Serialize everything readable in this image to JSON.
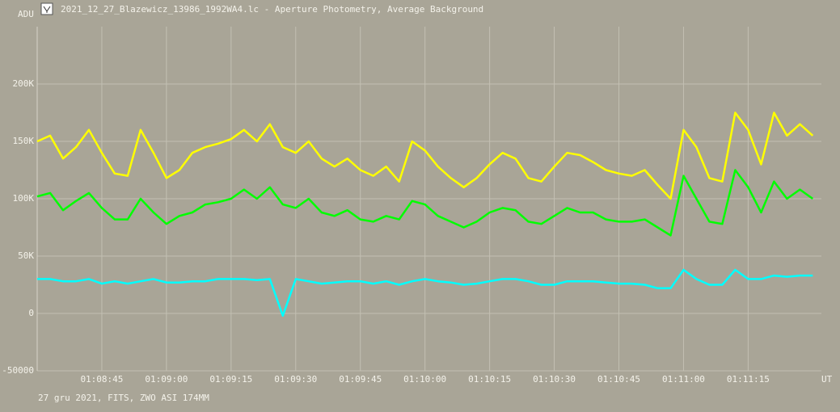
{
  "chart_data": {
    "type": "line",
    "title": "2021_12_27_Blazewicz_13986_1992WA4.lc - Aperture Photometry, Average Background",
    "y_label": "ADU",
    "x_label": "UT",
    "footer": "27 gru 2021, FITS, ZWO ASI 174MM",
    "grid": true,
    "xlim": [
      4110,
      4292
    ],
    "xticks": [
      {
        "value": 4125,
        "label": "01:08:45"
      },
      {
        "value": 4140,
        "label": "01:09:00"
      },
      {
        "value": 4155,
        "label": "01:09:15"
      },
      {
        "value": 4170,
        "label": "01:09:30"
      },
      {
        "value": 4185,
        "label": "01:09:45"
      },
      {
        "value": 4200,
        "label": "01:10:00"
      },
      {
        "value": 4215,
        "label": "01:10:15"
      },
      {
        "value": 4230,
        "label": "01:10:30"
      },
      {
        "value": 4245,
        "label": "01:10:45"
      },
      {
        "value": 4260,
        "label": "01:11:00"
      },
      {
        "value": 4275,
        "label": "01:11:15"
      }
    ],
    "ylim": [
      -50000,
      250000
    ],
    "yticks": [
      -50000,
      0,
      {
        "value": 50000,
        "label": "50K"
      },
      {
        "value": 100000,
        "label": "100K"
      },
      {
        "value": 150000,
        "label": "150K"
      },
      {
        "value": 200000,
        "label": "200K"
      }
    ],
    "x": [
      4110,
      4113,
      4116,
      4119,
      4122,
      4125,
      4128,
      4131,
      4134,
      4137,
      4140,
      4143,
      4146,
      4149,
      4152,
      4155,
      4158,
      4161,
      4164,
      4167,
      4170,
      4173,
      4176,
      4179,
      4182,
      4185,
      4188,
      4191,
      4194,
      4197,
      4200,
      4203,
      4206,
      4209,
      4212,
      4215,
      4218,
      4221,
      4224,
      4227,
      4230,
      4233,
      4236,
      4239,
      4242,
      4245,
      4248,
      4251,
      4254,
      4257,
      4260,
      4263,
      4266,
      4269,
      4272,
      4275,
      4278,
      4281,
      4284,
      4287,
      4290
    ],
    "series": [
      {
        "color": "#ffff00",
        "values": [
          150000,
          155000,
          135000,
          145000,
          160000,
          140000,
          122000,
          120000,
          160000,
          140000,
          118000,
          125000,
          140000,
          145000,
          148000,
          152000,
          160000,
          150000,
          165000,
          145000,
          140000,
          150000,
          135000,
          128000,
          135000,
          125000,
          120000,
          128000,
          115000,
          150000,
          142000,
          128000,
          118000,
          110000,
          118000,
          130000,
          140000,
          135000,
          118000,
          115000,
          128000,
          140000,
          138000,
          132000,
          125000,
          122000,
          120000,
          125000,
          112000,
          100000,
          160000,
          145000,
          118000,
          115000,
          175000,
          160000,
          130000,
          175000,
          155000,
          165000,
          155000
        ]
      },
      {
        "color": "#00ff00",
        "values": [
          102000,
          105000,
          90000,
          98000,
          105000,
          92000,
          82000,
          82000,
          100000,
          88000,
          78000,
          85000,
          88000,
          95000,
          97000,
          100000,
          108000,
          100000,
          110000,
          95000,
          92000,
          100000,
          88000,
          85000,
          90000,
          82000,
          80000,
          85000,
          82000,
          98000,
          95000,
          85000,
          80000,
          75000,
          80000,
          88000,
          92000,
          90000,
          80000,
          78000,
          85000,
          92000,
          88000,
          88000,
          82000,
          80000,
          80000,
          82000,
          75000,
          68000,
          120000,
          100000,
          80000,
          78000,
          125000,
          110000,
          88000,
          115000,
          100000,
          108000,
          100000
        ]
      },
      {
        "color": "#00ffff",
        "values": [
          30000,
          30000,
          28000,
          28000,
          30000,
          26000,
          28000,
          26000,
          28000,
          30000,
          27000,
          27000,
          28000,
          28000,
          30000,
          30000,
          30000,
          29000,
          30000,
          -2000,
          30000,
          28000,
          26000,
          27000,
          28000,
          28000,
          26000,
          28000,
          25000,
          28000,
          30000,
          28000,
          27000,
          25000,
          26000,
          28000,
          30000,
          30000,
          28000,
          25000,
          25000,
          28000,
          28000,
          28000,
          27000,
          26000,
          26000,
          25000,
          22000,
          22000,
          38000,
          30000,
          25000,
          25000,
          38000,
          30000,
          30000,
          33000,
          32000,
          33000,
          33000
        ]
      }
    ]
  }
}
